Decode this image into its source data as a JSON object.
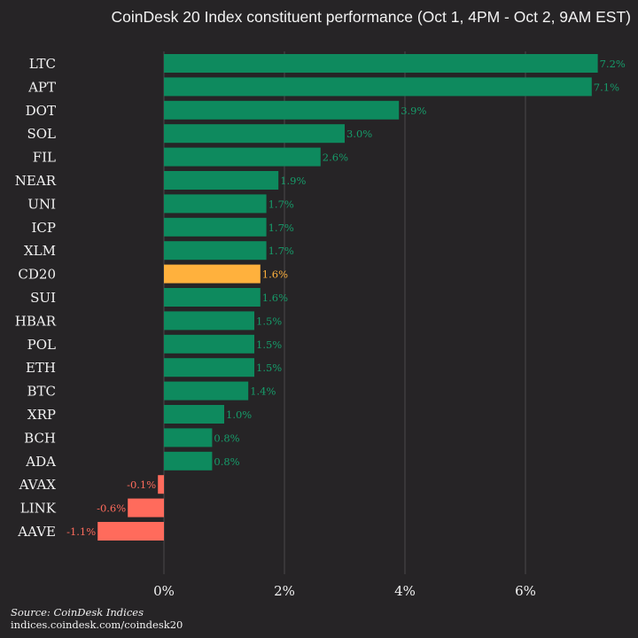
{
  "title": "CoinDesk 20 Index constituent performance (Oct 1, 4PM - Oct 2, 9AM EST)",
  "colors": {
    "positive": "#0e8a5e",
    "positive_label": "#169c6a",
    "highlight": "#ffb13d",
    "negative": "#ff6b5c",
    "background": "#262426",
    "text": "#f2f2f2"
  },
  "footer": {
    "source": "Source: CoinDesk Indices",
    "url": "indices.coindesk.com/coindesk20"
  },
  "chart_data": {
    "type": "bar",
    "orientation": "horizontal",
    "title": "CoinDesk 20 Index constituent performance (Oct 1, 4PM - Oct 2, 9AM EST)",
    "categories": [
      "LTC",
      "APT",
      "DOT",
      "SOL",
      "FIL",
      "NEAR",
      "UNI",
      "ICP",
      "XLM",
      "CD20",
      "SUI",
      "HBAR",
      "POL",
      "ETH",
      "BTC",
      "XRP",
      "BCH",
      "ADA",
      "AVAX",
      "LINK",
      "AAVE"
    ],
    "values": [
      7.2,
      7.1,
      3.9,
      3.0,
      2.6,
      1.9,
      1.7,
      1.7,
      1.7,
      1.6,
      1.6,
      1.5,
      1.5,
      1.5,
      1.4,
      1.0,
      0.8,
      0.8,
      -0.1,
      -0.6,
      -1.1
    ],
    "labels": [
      "7.2%",
      "7.1%",
      "3.9%",
      "3.0%",
      "2.6%",
      "1.9%",
      "1.7%",
      "1.7%",
      "1.7%",
      "1.6%",
      "1.6%",
      "1.5%",
      "1.5%",
      "1.5%",
      "1.4%",
      "1.0%",
      "0.8%",
      "0.8%",
      "-0.1%",
      "-0.6%",
      "-1.1%"
    ],
    "highlight_category": "CD20",
    "xticks": [
      0,
      2,
      4,
      6
    ],
    "xtick_labels": [
      "0%",
      "2%",
      "4%",
      "6%"
    ],
    "xlim": [
      -1.5,
      7.5
    ],
    "grid": "vertical"
  }
}
